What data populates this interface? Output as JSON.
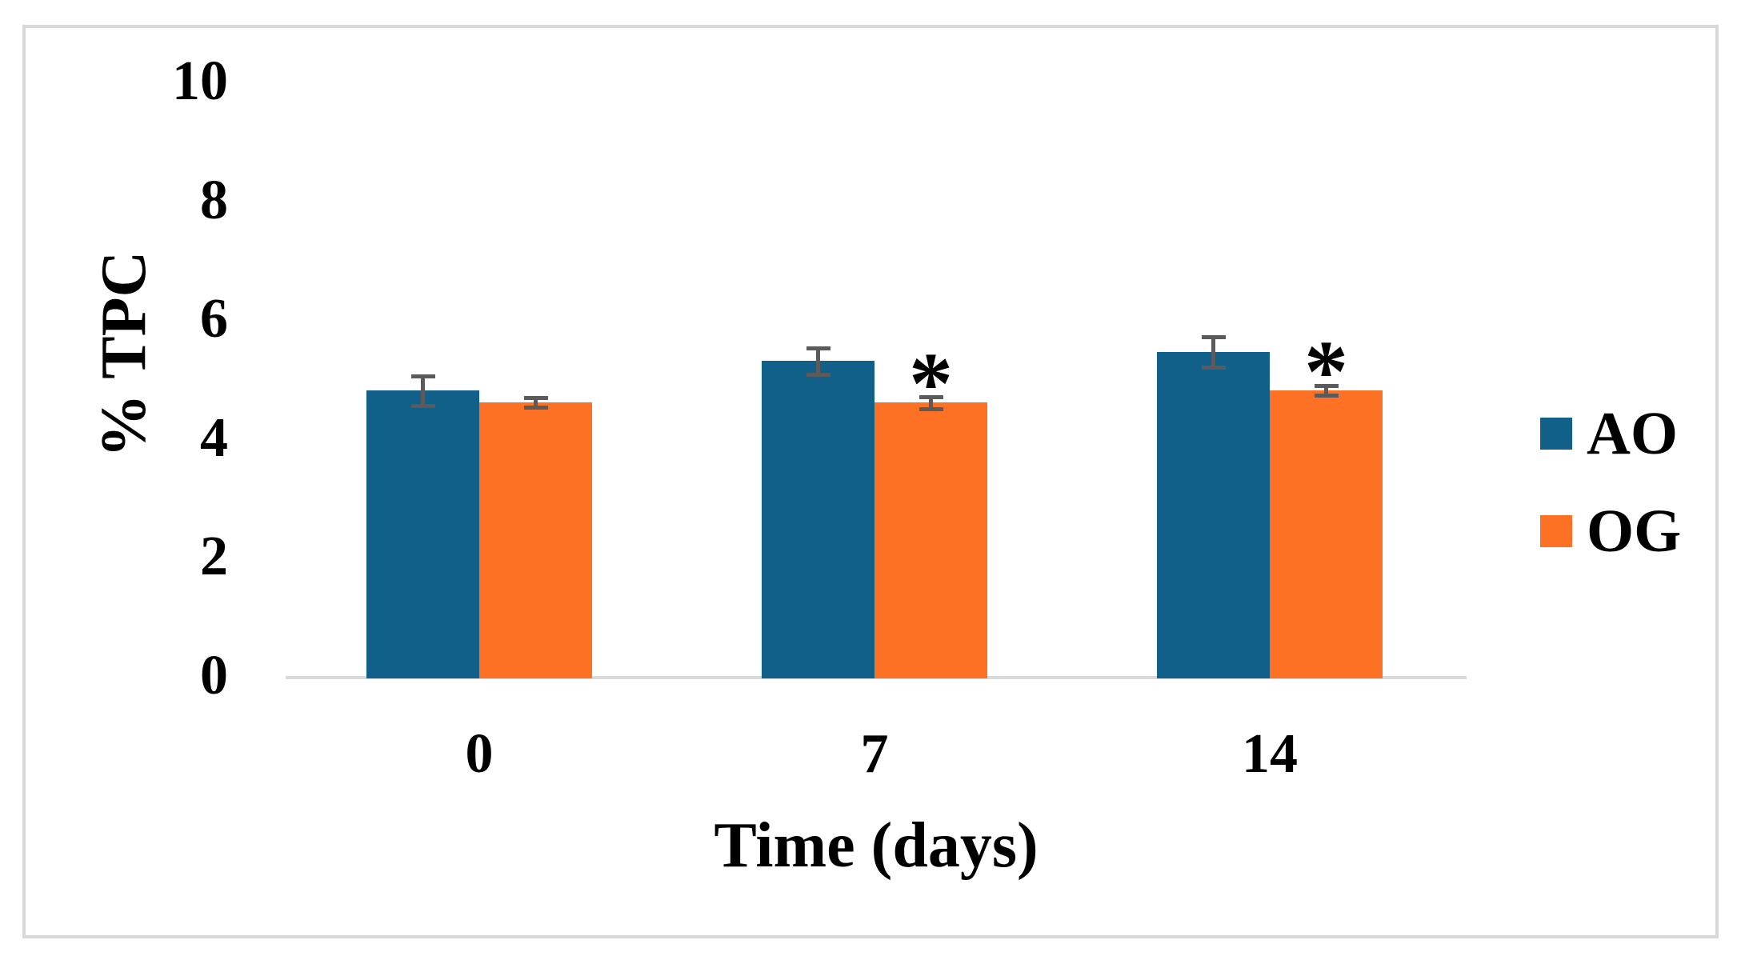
{
  "figure": {
    "background": "#ffffff",
    "border_color": "#d9d9d9"
  },
  "chart_data": {
    "type": "bar",
    "title": "",
    "xlabel": "Time (days)",
    "ylabel": "% TPC",
    "categories": [
      "0",
      "7",
      "14"
    ],
    "series": [
      {
        "name": "AO",
        "color": "#10608a",
        "values": [
          4.8,
          5.3,
          5.45
        ],
        "errors": [
          0.25,
          0.22,
          0.25
        ],
        "annotations": [
          "",
          "",
          ""
        ]
      },
      {
        "name": "OG",
        "color": "#fc7124",
        "values": [
          4.6,
          4.6,
          4.8
        ],
        "errors": [
          0.08,
          0.1,
          0.08
        ],
        "annotations": [
          "",
          "*",
          "*"
        ]
      }
    ],
    "ylim": [
      0,
      10
    ],
    "yticks": [
      "0",
      "2",
      "4",
      "6",
      "8",
      "10"
    ],
    "grid": false,
    "legend_position": "right",
    "error_bar_color": "#5b5b5b",
    "axis_line_color": "#d9d9d9",
    "significance_marker": "*",
    "text_color": "#000000"
  }
}
